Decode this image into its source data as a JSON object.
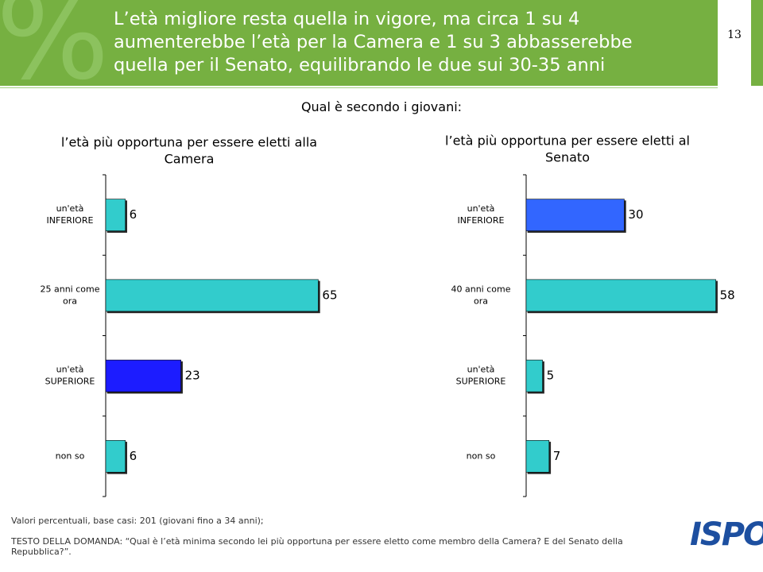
{
  "header": {
    "title": "L’età migliore  resta quella in vigore, ma circa 1 su 4\naumenterebbe l’età per la Camera e 1 su 3 abbasserebbe\nquella per il Senato, equilibrando le due sui 30-35 anni",
    "page_number": "13",
    "subtitle": "Qual è secondo i giovani:"
  },
  "chart_data": [
    {
      "type": "bar",
      "orientation": "horizontal",
      "title": "l’età più opportuna per essere eletti alla\nCamera",
      "categories": [
        "un'età\nINFERIORE",
        "25 anni come\nora",
        "un'età\nSUPERIORE",
        "non so"
      ],
      "values": [
        6,
        65,
        23,
        6
      ],
      "colors": [
        "#33cccc",
        "#33cccc",
        "#1a1aff",
        "#33cccc"
      ],
      "xlim": [
        0,
        70
      ]
    },
    {
      "type": "bar",
      "orientation": "horizontal",
      "title": "l’età più opportuna per essere eletti al\nSenato",
      "categories": [
        "un'età\nINFERIORE",
        "40 anni come\nora",
        "un'età\nSUPERIORE",
        "non so"
      ],
      "values": [
        30,
        58,
        5,
        7
      ],
      "colors": [
        "#3366ff",
        "#33cccc",
        "#33cccc",
        "#33cccc"
      ],
      "xlim": [
        0,
        70
      ]
    }
  ],
  "footer": {
    "note": "Valori percentuali, base casi: 201 (giovani fino a 34 anni);",
    "question": "TESTO DELLA DOMANDA: “Qual è l’età minima secondo lei più opportuna per essere eletto come membro della Camera? E del Senato della Repubblica?”.",
    "logo": "ISPO"
  }
}
